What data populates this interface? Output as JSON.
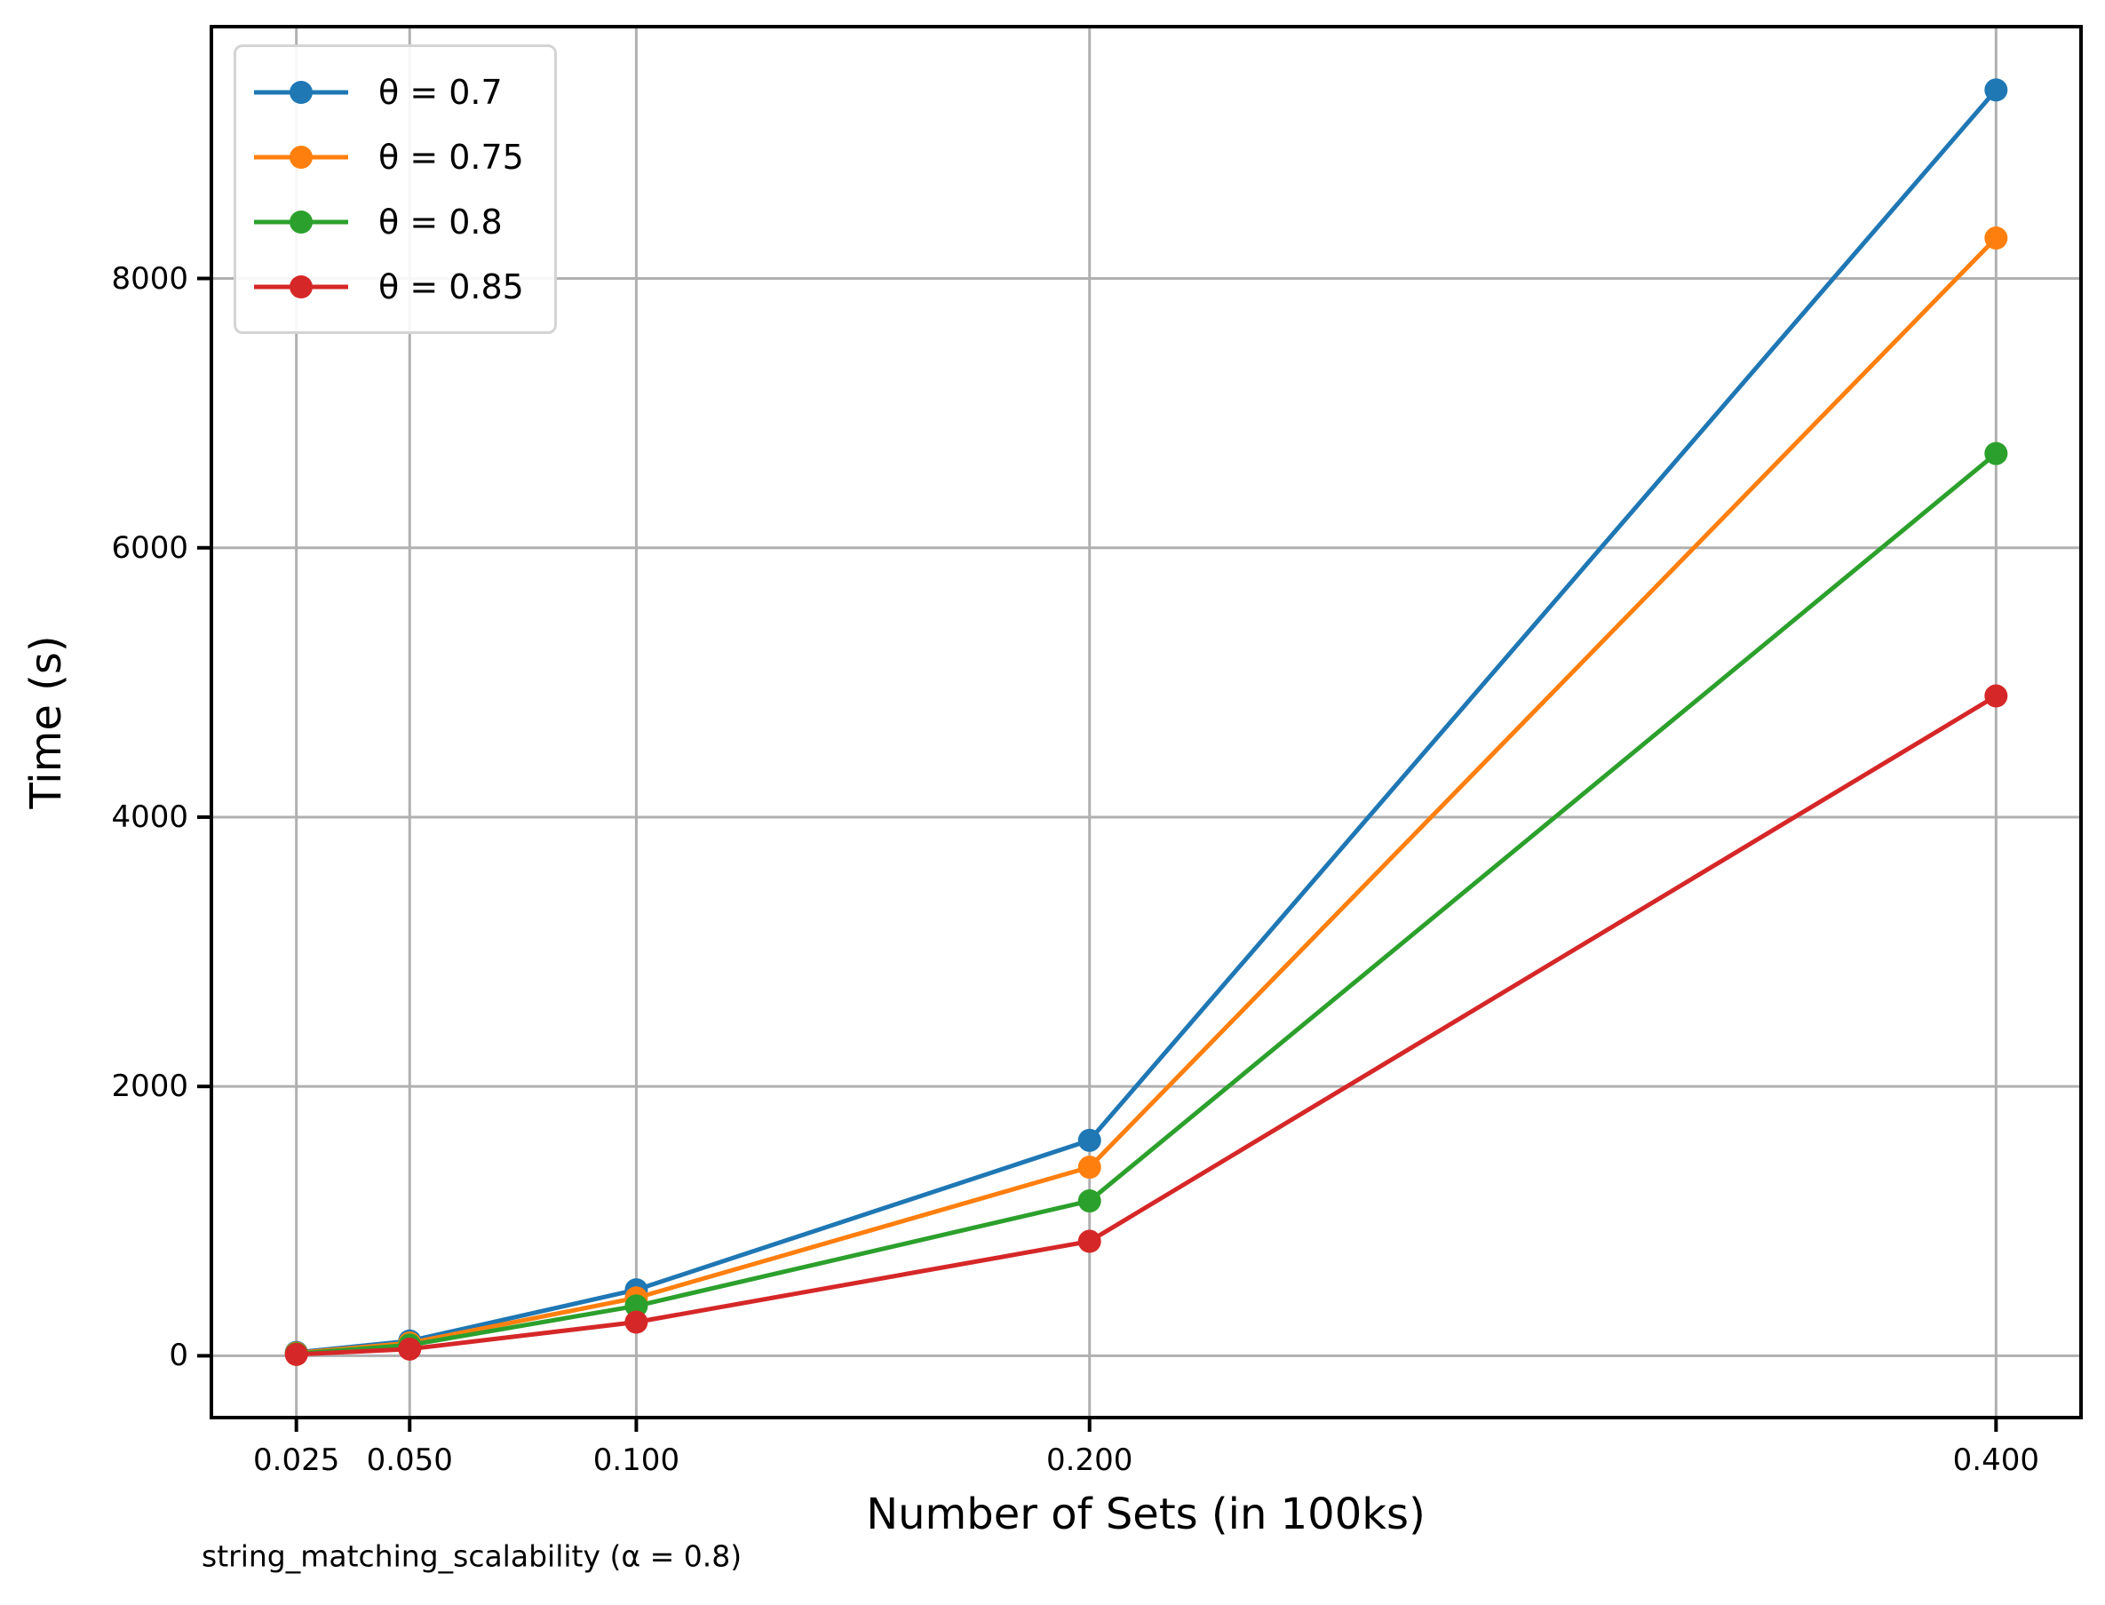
{
  "chart_data": {
    "type": "line",
    "title": "",
    "xlabel": "Number of Sets (in 100ks)",
    "ylabel": "Time (s)",
    "caption": "string_matching_scalability (α = 0.8)",
    "x": [
      0.025,
      0.05,
      0.1,
      0.2,
      0.4
    ],
    "x_tick_labels": [
      "0.025",
      "0.050",
      "0.100",
      "0.200",
      "0.400"
    ],
    "y_ticks": [
      0,
      2000,
      4000,
      6000,
      8000
    ],
    "y_tick_labels": [
      "0",
      "2000",
      "4000",
      "6000",
      "8000"
    ],
    "xlim": [
      0.00625,
      0.41875
    ],
    "ylim": [
      -459,
      9870
    ],
    "grid": true,
    "grid_color": "#b0b0b0",
    "spine_color": "#000000",
    "legend_position": "upper-left",
    "series": [
      {
        "name": "θ = 0.7",
        "color": "#1f77b4",
        "values": [
          25,
          110,
          490,
          1600,
          9400
        ]
      },
      {
        "name": "θ = 0.75",
        "color": "#ff7f0e",
        "values": [
          20,
          95,
          430,
          1400,
          8300
        ]
      },
      {
        "name": "θ = 0.8",
        "color": "#2ca02c",
        "values": [
          15,
          80,
          370,
          1150,
          6700
        ]
      },
      {
        "name": "θ = 0.85",
        "color": "#d62728",
        "values": [
          10,
          50,
          250,
          850,
          4900
        ]
      }
    ]
  }
}
